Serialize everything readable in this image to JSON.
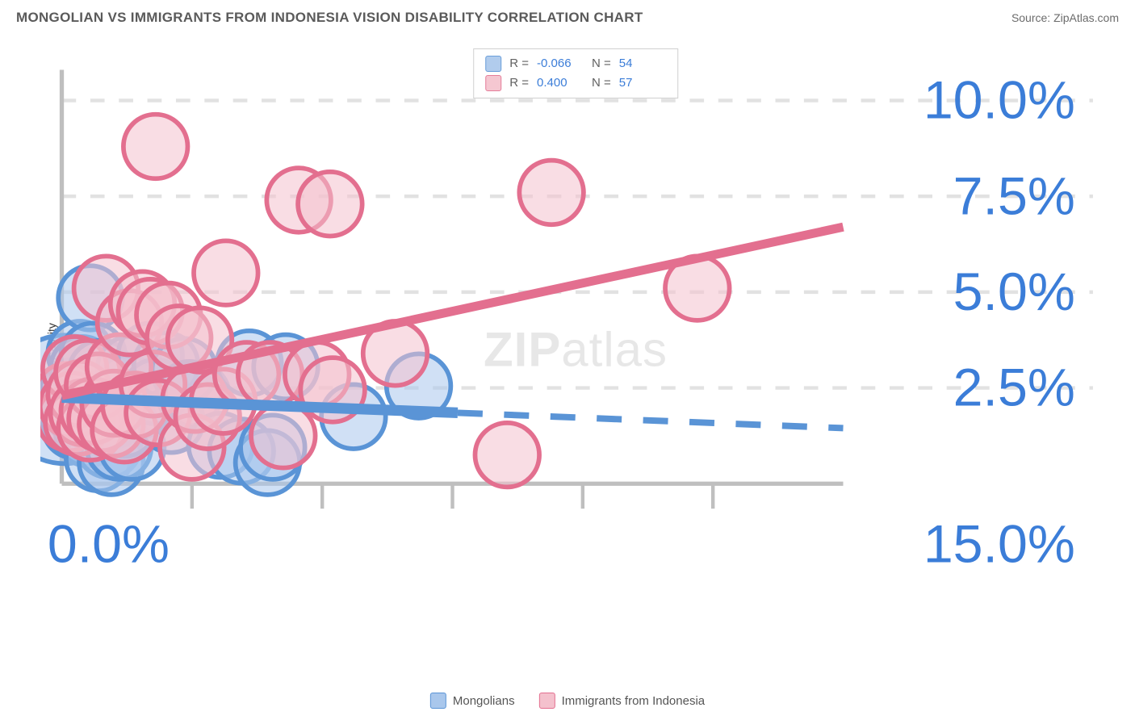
{
  "header": {
    "title": "MONGOLIAN VS IMMIGRANTS FROM INDONESIA VISION DISABILITY CORRELATION CHART",
    "source_prefix": "Source: ",
    "source": "ZipAtlas.com"
  },
  "watermark": {
    "part1": "ZIP",
    "part2": "atlas"
  },
  "chart": {
    "type": "scatter",
    "y_axis_label": "Vision Disability",
    "background_color": "#ffffff",
    "grid_color": "#e2e2e2",
    "axis_line_color": "#bfbfbf",
    "tick_label_color": "#3b7dd8",
    "tick_fontsize": 15,
    "x_domain": [
      0,
      15
    ],
    "y_domain": [
      0,
      10.8
    ],
    "x_ticks": [
      {
        "v": 0.0,
        "label": "0.0%"
      },
      {
        "v": 15.0,
        "label": "15.0%"
      }
    ],
    "x_minor_ticks": [
      2.5,
      5.0,
      7.5,
      10.0,
      12.5
    ],
    "y_ticks": [
      {
        "v": 2.5,
        "label": "2.5%"
      },
      {
        "v": 5.0,
        "label": "5.0%"
      },
      {
        "v": 7.5,
        "label": "7.5%"
      },
      {
        "v": 10.0,
        "label": "10.0%"
      }
    ],
    "series": [
      {
        "key": "mongolians",
        "name": "Mongolians",
        "fill": "#a9c7ec",
        "stroke": "#5a94d6",
        "fill_opacity": 0.55,
        "marker_radius": 9,
        "R": "-0.066",
        "N": "54",
        "trend": {
          "solid": {
            "x1": 0.0,
            "y1": 2.25,
            "x2": 7.6,
            "y2": 1.85
          },
          "dashed": {
            "x1": 7.6,
            "y1": 1.85,
            "x2": 15.0,
            "y2": 1.45
          },
          "width": 3
        },
        "points": [
          {
            "x": 0.05,
            "y": 2.2,
            "r": 18
          },
          {
            "x": 0.1,
            "y": 2.0,
            "r": 10
          },
          {
            "x": 0.15,
            "y": 1.7,
            "r": 9
          },
          {
            "x": 0.2,
            "y": 2.4,
            "r": 9
          },
          {
            "x": 0.25,
            "y": 1.5,
            "r": 9
          },
          {
            "x": 0.3,
            "y": 1.9,
            "r": 9
          },
          {
            "x": 0.35,
            "y": 3.4,
            "r": 9
          },
          {
            "x": 0.4,
            "y": 3.0,
            "r": 9
          },
          {
            "x": 0.45,
            "y": 2.1,
            "r": 9
          },
          {
            "x": 0.5,
            "y": 1.3,
            "r": 9
          },
          {
            "x": 0.55,
            "y": 4.85,
            "r": 9
          },
          {
            "x": 0.6,
            "y": 1.6,
            "r": 9
          },
          {
            "x": 0.6,
            "y": 3.35,
            "r": 9
          },
          {
            "x": 0.7,
            "y": 0.65,
            "r": 9
          },
          {
            "x": 0.75,
            "y": 2.9,
            "r": 9
          },
          {
            "x": 0.8,
            "y": 2.0,
            "r": 9
          },
          {
            "x": 0.9,
            "y": 1.0,
            "r": 9
          },
          {
            "x": 0.95,
            "y": 0.55,
            "r": 9
          },
          {
            "x": 1.0,
            "y": 1.8,
            "r": 9
          },
          {
            "x": 1.1,
            "y": 0.95,
            "r": 9
          },
          {
            "x": 1.2,
            "y": 1.55,
            "r": 9
          },
          {
            "x": 1.25,
            "y": 2.5,
            "r": 9
          },
          {
            "x": 1.3,
            "y": 3.0,
            "r": 9
          },
          {
            "x": 1.35,
            "y": 0.95,
            "r": 9
          },
          {
            "x": 1.5,
            "y": 2.05,
            "r": 9
          },
          {
            "x": 1.7,
            "y": 3.35,
            "r": 9
          },
          {
            "x": 1.8,
            "y": 2.4,
            "r": 9
          },
          {
            "x": 2.0,
            "y": 3.1,
            "r": 9
          },
          {
            "x": 2.1,
            "y": 1.65,
            "r": 9
          },
          {
            "x": 2.35,
            "y": 2.95,
            "r": 9
          },
          {
            "x": 2.45,
            "y": 2.35,
            "r": 9
          },
          {
            "x": 2.6,
            "y": 2.3,
            "r": 9
          },
          {
            "x": 3.05,
            "y": 1.0,
            "r": 9
          },
          {
            "x": 3.45,
            "y": 0.85,
            "r": 9
          },
          {
            "x": 3.6,
            "y": 3.15,
            "r": 9
          },
          {
            "x": 3.95,
            "y": 0.55,
            "r": 9
          },
          {
            "x": 4.05,
            "y": 0.95,
            "r": 9
          },
          {
            "x": 4.3,
            "y": 3.05,
            "r": 9
          },
          {
            "x": 5.6,
            "y": 1.75,
            "r": 9
          },
          {
            "x": 6.85,
            "y": 2.55,
            "r": 9
          }
        ]
      },
      {
        "key": "indonesia",
        "name": "Immigrants from Indonesia",
        "fill": "#f4c1cd",
        "stroke": "#e36f8f",
        "fill_opacity": 0.55,
        "marker_radius": 9,
        "R": "0.400",
        "N": "57",
        "trend": {
          "solid": {
            "x1": 0.0,
            "y1": 2.3,
            "x2": 15.0,
            "y2": 6.7
          },
          "dashed": null,
          "width": 2.5
        },
        "points": [
          {
            "x": 0.1,
            "y": 2.3,
            "r": 9
          },
          {
            "x": 0.15,
            "y": 1.7,
            "r": 9
          },
          {
            "x": 0.2,
            "y": 2.05,
            "r": 9
          },
          {
            "x": 0.25,
            "y": 3.0,
            "r": 9
          },
          {
            "x": 0.3,
            "y": 1.6,
            "r": 9
          },
          {
            "x": 0.35,
            "y": 2.35,
            "r": 9
          },
          {
            "x": 0.4,
            "y": 1.85,
            "r": 9
          },
          {
            "x": 0.5,
            "y": 2.9,
            "r": 9
          },
          {
            "x": 0.55,
            "y": 1.45,
            "r": 9
          },
          {
            "x": 0.6,
            "y": 1.9,
            "r": 9
          },
          {
            "x": 0.7,
            "y": 2.55,
            "r": 9
          },
          {
            "x": 0.75,
            "y": 1.7,
            "r": 9
          },
          {
            "x": 0.85,
            "y": 5.1,
            "r": 9
          },
          {
            "x": 0.95,
            "y": 1.55,
            "r": 9
          },
          {
            "x": 1.0,
            "y": 2.1,
            "r": 9
          },
          {
            "x": 1.1,
            "y": 3.05,
            "r": 9
          },
          {
            "x": 1.2,
            "y": 1.4,
            "r": 9
          },
          {
            "x": 1.3,
            "y": 4.2,
            "r": 9
          },
          {
            "x": 1.4,
            "y": 2.05,
            "r": 9
          },
          {
            "x": 1.55,
            "y": 4.7,
            "r": 9
          },
          {
            "x": 1.7,
            "y": 4.5,
            "r": 9
          },
          {
            "x": 1.75,
            "y": 2.6,
            "r": 9
          },
          {
            "x": 1.8,
            "y": 8.8,
            "r": 9
          },
          {
            "x": 1.85,
            "y": 1.85,
            "r": 9
          },
          {
            "x": 2.05,
            "y": 4.4,
            "r": 9
          },
          {
            "x": 2.25,
            "y": 3.8,
            "r": 9
          },
          {
            "x": 2.5,
            "y": 0.95,
            "r": 9
          },
          {
            "x": 2.55,
            "y": 2.2,
            "r": 9
          },
          {
            "x": 2.65,
            "y": 3.75,
            "r": 9
          },
          {
            "x": 2.8,
            "y": 1.75,
            "r": 9
          },
          {
            "x": 3.1,
            "y": 2.15,
            "r": 9
          },
          {
            "x": 3.15,
            "y": 5.5,
            "r": 9
          },
          {
            "x": 3.55,
            "y": 2.85,
            "r": 9
          },
          {
            "x": 4.0,
            "y": 2.85,
            "r": 9
          },
          {
            "x": 4.25,
            "y": 1.25,
            "r": 9
          },
          {
            "x": 4.55,
            "y": 7.4,
            "r": 9
          },
          {
            "x": 4.9,
            "y": 2.85,
            "r": 9
          },
          {
            "x": 5.15,
            "y": 7.3,
            "r": 9
          },
          {
            "x": 5.2,
            "y": 2.45,
            "r": 9
          },
          {
            "x": 6.4,
            "y": 3.4,
            "r": 9
          },
          {
            "x": 8.55,
            "y": 0.75,
            "r": 9
          },
          {
            "x": 9.4,
            "y": 7.6,
            "r": 9
          },
          {
            "x": 12.2,
            "y": 5.1,
            "r": 9
          }
        ]
      }
    ],
    "legend_top": {
      "R_label": "R =",
      "N_label": "N ="
    }
  }
}
